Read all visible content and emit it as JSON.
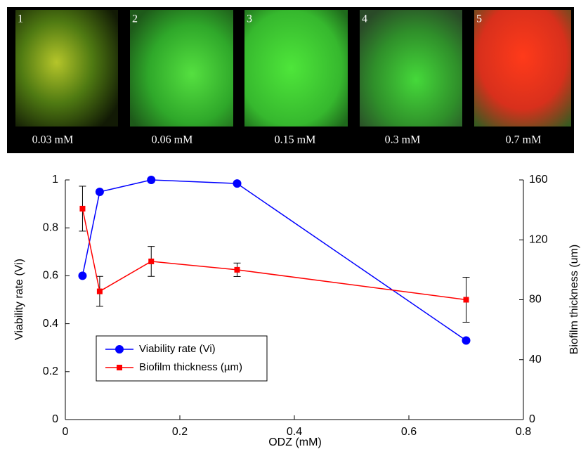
{
  "panels": [
    {
      "number": "1",
      "label": "0.03 mM"
    },
    {
      "number": "2",
      "label": "0.06 mM"
    },
    {
      "number": "3",
      "label": "0.15 mM"
    },
    {
      "number": "4",
      "label": "0.3 mM"
    },
    {
      "number": "5",
      "label": "0.7 mM"
    }
  ],
  "chart_data": {
    "type": "line",
    "xlabel": "ODZ (mM)",
    "ylabel": "Viability rate (Vi)",
    "y2label": "Biofilm thickness (um)",
    "x": [
      0.03,
      0.06,
      0.15,
      0.3,
      0.7
    ],
    "series": [
      {
        "name": "Viability rate (Vi)",
        "color": "#0000ff",
        "marker": "circle",
        "values": [
          0.6,
          0.95,
          1.0,
          0.985,
          0.33
        ]
      },
      {
        "name": "Biofilm thickness (µm)",
        "color": "#ff0000",
        "marker": "square",
        "axis": "y2",
        "values": [
          140.8,
          85.6,
          105.6,
          100,
          80
        ],
        "errors": [
          15,
          10,
          10,
          4.5,
          15
        ]
      }
    ],
    "xlim": [
      0,
      0.8
    ],
    "xticks": [
      0,
      0.2,
      0.4,
      0.6,
      0.8
    ],
    "ylim": [
      0,
      1
    ],
    "yticks": [
      0,
      0.2,
      0.4,
      0.6,
      0.8,
      1
    ],
    "y2lim": [
      0,
      160
    ],
    "y2ticks": [
      0,
      40,
      80,
      120,
      160
    ],
    "legend": "lower left"
  }
}
